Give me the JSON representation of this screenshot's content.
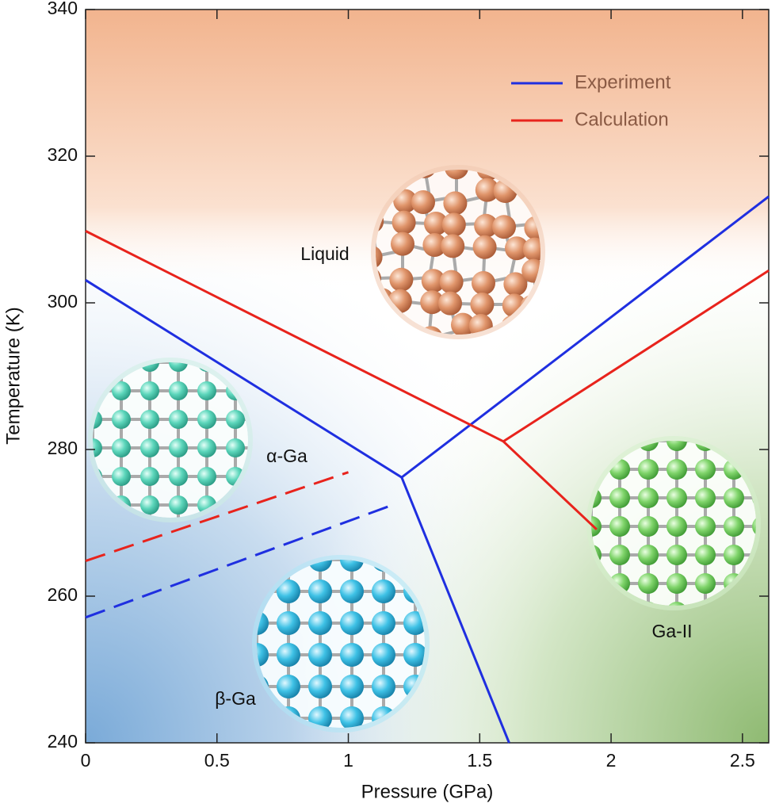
{
  "chart_data": {
    "type": "line",
    "x_label": "Pressure (GPa)",
    "y_label": "Temperature (K)",
    "xlim": [
      0,
      2.6
    ],
    "ylim": [
      240,
      340
    ],
    "xticks": [
      0,
      0.5,
      1,
      1.5,
      2,
      2.5
    ],
    "yticks": [
      240,
      260,
      280,
      300,
      320,
      340
    ],
    "legend": "top-right",
    "series": [
      {
        "name": "Experiment",
        "color": "#1f2fe0",
        "lines": [
          {
            "x": [
              0,
              1.203,
              2.6
            ],
            "values": [
              303.1,
              276.2,
              314.5
            ],
            "dashed": false
          },
          {
            "x": [
              1.203,
              1.612
            ],
            "values": [
              276.2,
              240
            ],
            "dashed": false
          },
          {
            "x": [
              0,
              1.173
            ],
            "values": [
              257.1,
              272.5
            ],
            "dashed": true
          }
        ]
      },
      {
        "name": "Calculation",
        "color": "#e8231c",
        "lines": [
          {
            "x": [
              0,
              1.59,
              2.6
            ],
            "values": [
              309.8,
              281.1,
              304.4
            ],
            "dashed": false
          },
          {
            "x": [
              1.59,
              1.945
            ],
            "values": [
              281.1,
              269.1
            ],
            "dashed": false
          },
          {
            "x": [
              0,
              1.0
            ],
            "values": [
              264.8,
              276.9
            ],
            "dashed": true
          }
        ]
      }
    ],
    "annotations": [
      "Liquid",
      "α-Ga",
      "β-Ga",
      "Ga-II"
    ]
  }
}
